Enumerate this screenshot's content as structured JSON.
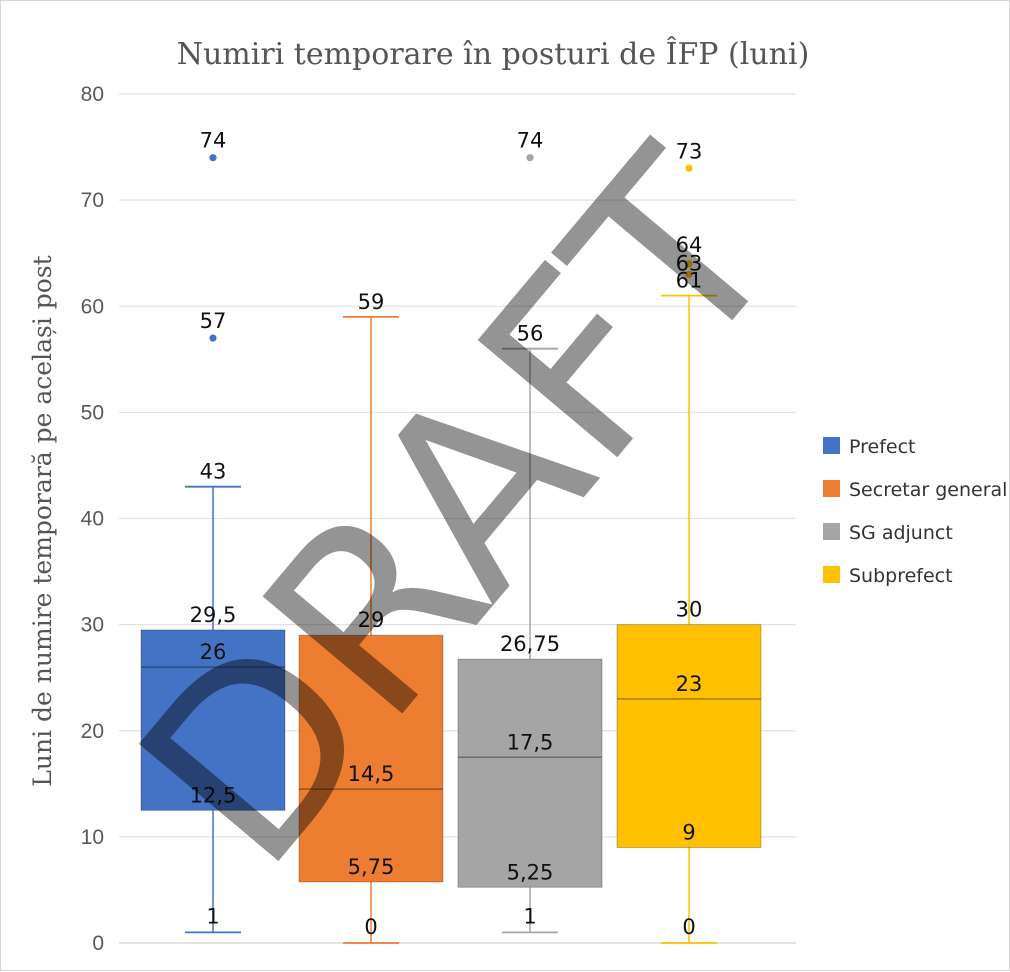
{
  "watermark": "DRAFT",
  "chart_data": {
    "type": "boxplot",
    "title": "Numiri temporare în posturi de ÎFP (luni)",
    "xlabel": "",
    "ylabel": "Luni de numire temporară pe același post",
    "ylim": [
      0,
      80
    ],
    "yticks": [
      "0",
      "10",
      "20",
      "30",
      "40",
      "50",
      "60",
      "70",
      "80"
    ],
    "grid": true,
    "legend_position": "right",
    "series": [
      {
        "name": "Prefect",
        "color": "#4472C4",
        "min": 1,
        "q1": 12.5,
        "median": 26,
        "q3": 29.5,
        "max": 43,
        "outliers": [
          57,
          74
        ],
        "labels": {
          "min": "1",
          "q1": "12,5",
          "median": "26",
          "q3": "29,5",
          "max": "43",
          "outliers": [
            "57",
            "74"
          ]
        }
      },
      {
        "name": "Secretar general",
        "color": "#ED7D31",
        "min": 0,
        "q1": 5.75,
        "median": 14.5,
        "q3": 29,
        "max": 59,
        "outliers": [],
        "labels": {
          "min": "0",
          "q1": "5,75",
          "median": "14,5",
          "q3": "29",
          "max": "59",
          "outliers": []
        }
      },
      {
        "name": "SG adjunct",
        "color": "#A5A5A5",
        "min": 1,
        "q1": 5.25,
        "median": 17.5,
        "q3": 26.75,
        "max": 56,
        "outliers": [
          74
        ],
        "labels": {
          "min": "1",
          "q1": "5,25",
          "median": "17,5",
          "q3": "26,75",
          "max": "56",
          "outliers": [
            "74"
          ]
        }
      },
      {
        "name": "Subprefect",
        "color": "#FFC000",
        "min": 0,
        "q1": 9,
        "median": 23,
        "q3": 30,
        "max": 61,
        "outliers": [
          63,
          64,
          73
        ],
        "labels": {
          "min": "0",
          "q1": "9",
          "median": "23",
          "q3": "30",
          "max": "61",
          "outliers": [
            "63",
            "64",
            "73"
          ]
        }
      }
    ]
  }
}
